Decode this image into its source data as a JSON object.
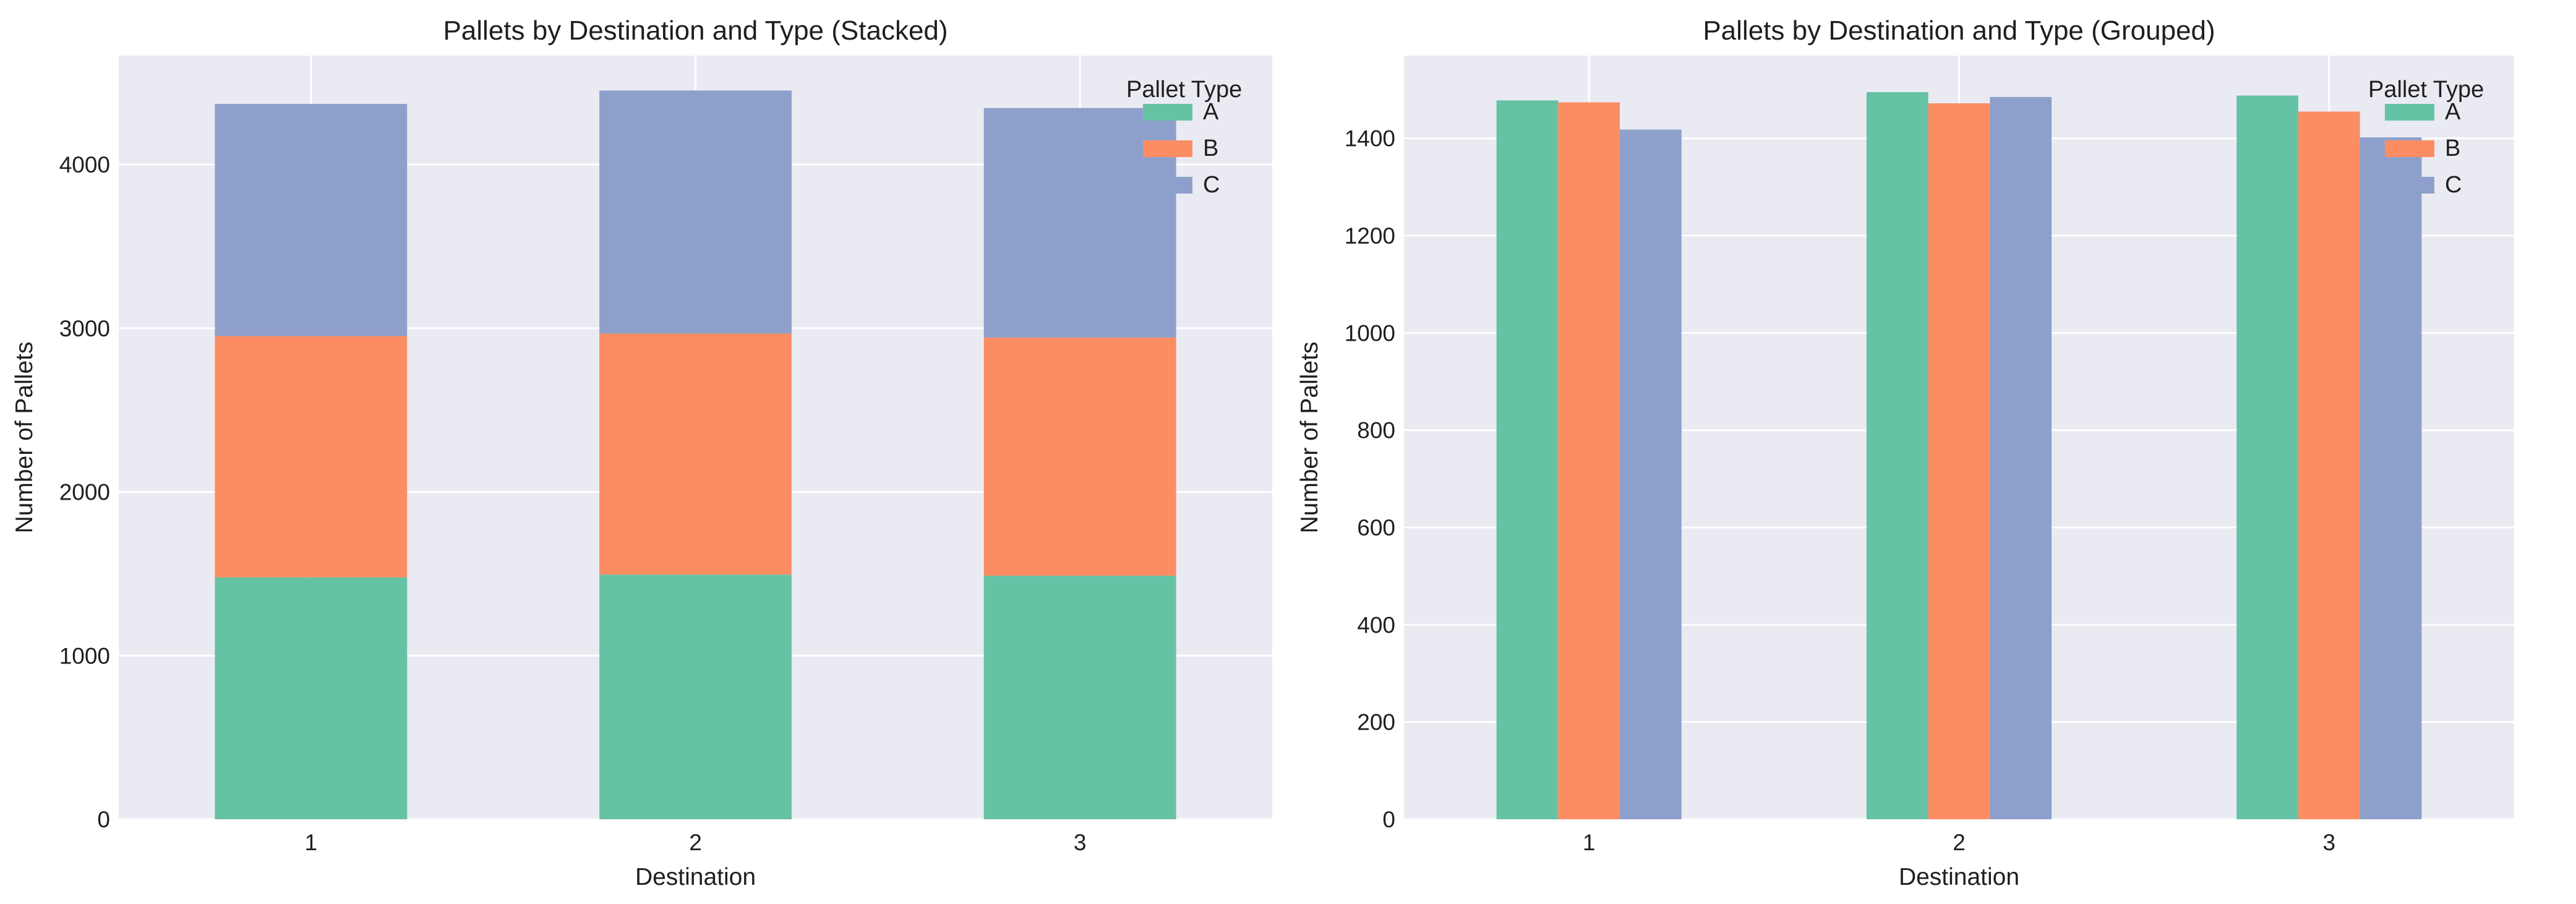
{
  "chart_data": [
    {
      "type": "bar",
      "mode": "stacked",
      "title": "Pallets by Destination and Type (Stacked)",
      "xlabel": "Destination",
      "ylabel": "Number of Pallets",
      "categories": [
        "1",
        "2",
        "3"
      ],
      "yticks": [
        "0",
        "1000",
        "2000",
        "3000",
        "4000"
      ],
      "ylim": [
        0,
        4665
      ],
      "grid": true,
      "legend": {
        "title": "Pallet Type",
        "placement": "top-right"
      },
      "series": [
        {
          "name": "A",
          "color": "#66c2a5",
          "values": [
            1478,
            1495,
            1488
          ]
        },
        {
          "name": "B",
          "color": "#fc8d62",
          "values": [
            1474,
            1472,
            1455
          ]
        },
        {
          "name": "C",
          "color": "#8da0cb",
          "values": [
            1418,
            1485,
            1402
          ]
        }
      ]
    },
    {
      "type": "bar",
      "mode": "grouped",
      "title": "Pallets by Destination and Type (Grouped)",
      "xlabel": "Destination",
      "ylabel": "Number of Pallets",
      "categories": [
        "1",
        "2",
        "3"
      ],
      "yticks": [
        "0",
        "200",
        "400",
        "600",
        "800",
        "1000",
        "1200",
        "1400"
      ],
      "ylim": [
        0,
        1570
      ],
      "grid": true,
      "legend": {
        "title": "Pallet Type",
        "placement": "top-right"
      },
      "series": [
        {
          "name": "A",
          "color": "#66c2a5",
          "values": [
            1478,
            1495,
            1488
          ]
        },
        {
          "name": "B",
          "color": "#fc8d62",
          "values": [
            1474,
            1472,
            1455
          ]
        },
        {
          "name": "C",
          "color": "#8da0cb",
          "values": [
            1418,
            1485,
            1402
          ]
        }
      ]
    }
  ],
  "theme": {
    "plot_background": "#eaeaf2",
    "grid_color": "#ffffff"
  }
}
